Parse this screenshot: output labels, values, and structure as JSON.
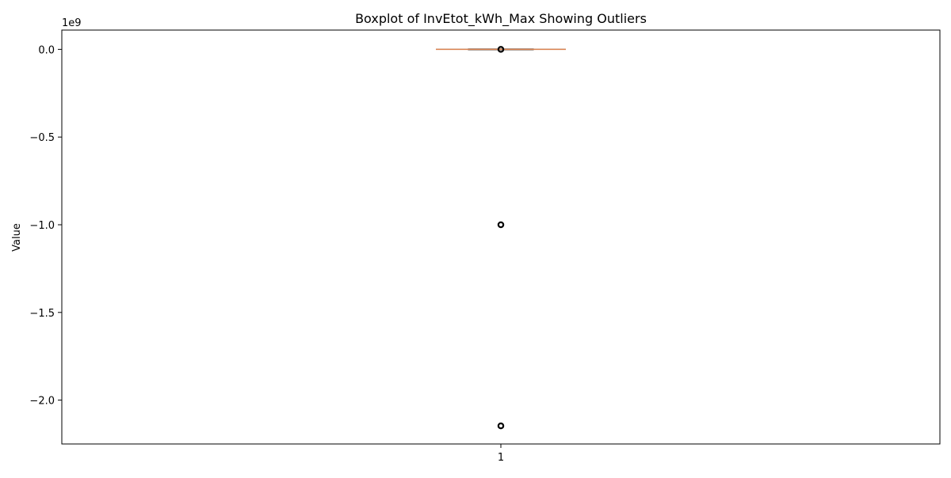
{
  "chart_data": {
    "type": "box",
    "title": "Boxplot of InvEtot_kWh_Max Showing Outliers",
    "xlabel": "",
    "ylabel": "Value",
    "offset_text": "1e9",
    "categories": [
      "1"
    ],
    "y_scale_factor": 1000000000,
    "ylim": [
      -2.25,
      0.11
    ],
    "y_ticks": [
      0.0,
      -0.5,
      -1.0,
      -1.5,
      -2.0
    ],
    "y_tick_labels": [
      "0.0",
      "−0.5",
      "−1.0",
      "−1.5",
      "−2.0"
    ],
    "grid": false,
    "box": {
      "q1": 0.0,
      "median": 0.0,
      "q3": 0.0,
      "whisker_low": 0.0,
      "whisker_high": 0.0
    },
    "outliers": [
      -2.147,
      -1.0,
      0.0
    ],
    "colors": {
      "box": "#000000",
      "median": "#dd8452",
      "outlier": "#000000"
    }
  }
}
